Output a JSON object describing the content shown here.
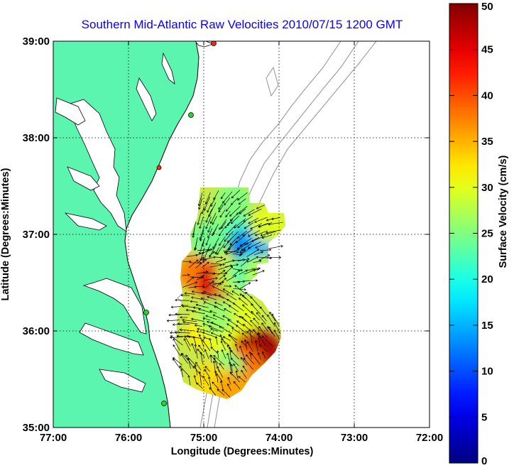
{
  "chart_data": {
    "type": "heatmap",
    "title": "Southern Mid-Atlantic Raw Velocities 2010/07/15 1200 GMT",
    "xlabel": "Longitude (Degrees:Minutes)",
    "ylabel": "Latitude (Degrees:Minutes)",
    "x_ticks": [
      {
        "value": -77,
        "label": "77:00"
      },
      {
        "value": -76,
        "label": "76:00"
      },
      {
        "value": -75,
        "label": "75:00"
      },
      {
        "value": -74,
        "label": "74:00"
      },
      {
        "value": -73,
        "label": "73:00"
      },
      {
        "value": -72,
        "label": "72:00"
      }
    ],
    "y_ticks": [
      {
        "value": 35,
        "label": "35:00"
      },
      {
        "value": 36,
        "label": "36:00"
      },
      {
        "value": 37,
        "label": "37:00"
      },
      {
        "value": 38,
        "label": "38:00"
      },
      {
        "value": 39,
        "label": "39:00"
      }
    ],
    "xlim": [
      -77,
      -72
    ],
    "ylim": [
      35,
      39
    ],
    "grid": true,
    "colorbar": {
      "label": "Surface Velocity (cm/s)",
      "range": [
        0,
        50
      ],
      "ticks": [
        {
          "value": 0,
          "label": "0"
        },
        {
          "value": 5,
          "label": "5"
        },
        {
          "value": 10,
          "label": "10"
        },
        {
          "value": 15,
          "label": "15"
        },
        {
          "value": 20,
          "label": "20"
        },
        {
          "value": 25,
          "label": "25"
        },
        {
          "value": 30,
          "label": "30"
        },
        {
          "value": 35,
          "label": "35"
        },
        {
          "value": 40,
          "label": "40"
        },
        {
          "value": 45,
          "label": "45"
        },
        {
          "value": 50,
          "label": "50"
        }
      ]
    },
    "speed_field": [
      {
        "lon": -74.7,
        "lat": 37.2,
        "speed": 26
      },
      {
        "lon": -74.5,
        "lat": 37.0,
        "speed": 22
      },
      {
        "lon": -74.4,
        "lat": 36.88,
        "speed": 11
      },
      {
        "lon": -74.28,
        "lat": 36.92,
        "speed": 15
      },
      {
        "lon": -74.15,
        "lat": 37.1,
        "speed": 30
      },
      {
        "lon": -74.6,
        "lat": 37.35,
        "speed": 25
      },
      {
        "lon": -74.95,
        "lat": 36.95,
        "speed": 24
      },
      {
        "lon": -75.1,
        "lat": 36.6,
        "speed": 38
      },
      {
        "lon": -74.85,
        "lat": 36.5,
        "speed": 45
      },
      {
        "lon": -74.6,
        "lat": 36.55,
        "speed": 28
      },
      {
        "lon": -74.4,
        "lat": 36.6,
        "speed": 23
      },
      {
        "lon": -74.2,
        "lat": 36.6,
        "speed": 28
      },
      {
        "lon": -75.0,
        "lat": 36.0,
        "speed": 32
      },
      {
        "lon": -74.7,
        "lat": 35.9,
        "speed": 30
      },
      {
        "lon": -74.35,
        "lat": 35.85,
        "speed": 46
      },
      {
        "lon": -74.2,
        "lat": 35.8,
        "speed": 48
      },
      {
        "lon": -74.45,
        "lat": 35.65,
        "speed": 38
      },
      {
        "lon": -74.7,
        "lat": 35.6,
        "speed": 25
      },
      {
        "lon": -74.9,
        "lat": 35.5,
        "speed": 33
      },
      {
        "lon": -74.5,
        "lat": 36.15,
        "speed": 30
      },
      {
        "lon": -74.85,
        "lat": 36.15,
        "speed": 26
      },
      {
        "lon": -74.6,
        "lat": 35.4,
        "speed": 36
      }
    ],
    "colors": {
      "land": "#5cf5b0",
      "water": "#ffffff",
      "coastline": "#000000",
      "bathymetry": "#9a9a9a",
      "title": "#0a00ff",
      "arrows": "#000000",
      "station_green": "#2bd62b",
      "station_red": "#ff2a00"
    }
  }
}
